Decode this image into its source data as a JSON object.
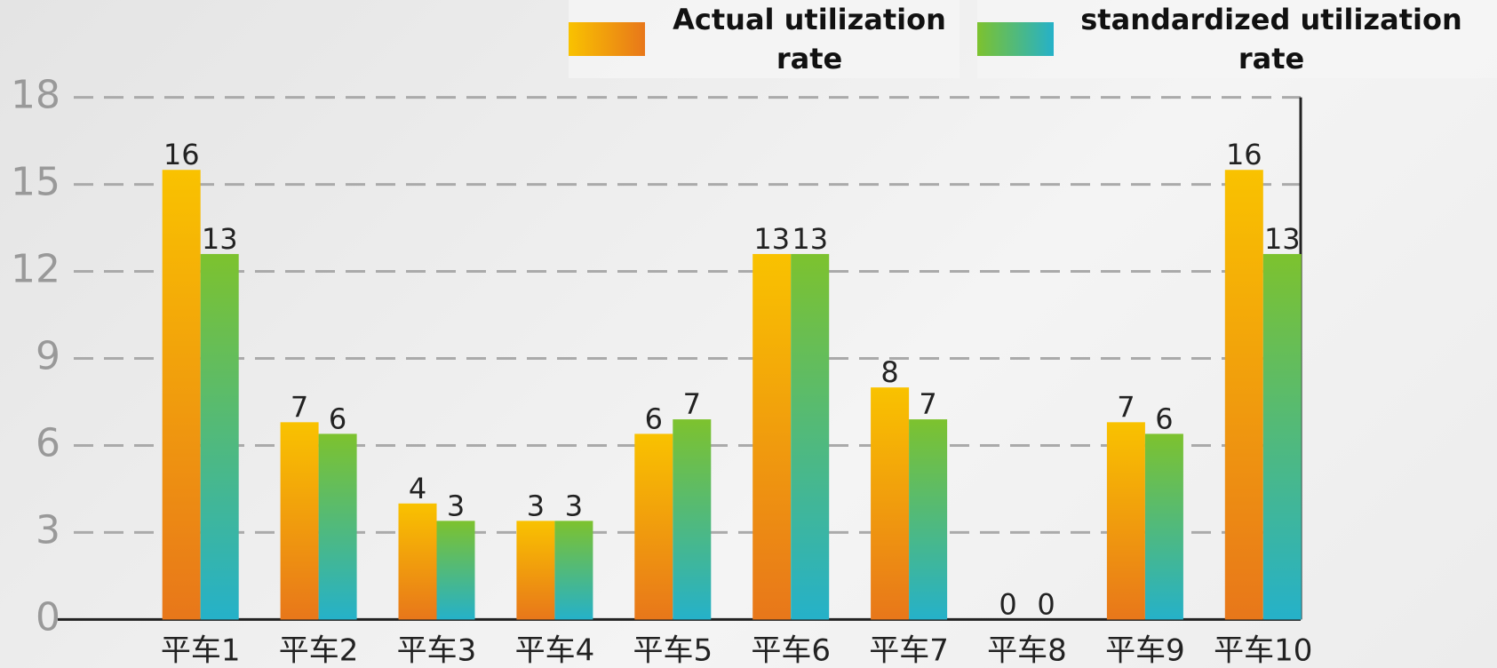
{
  "chart_data": {
    "type": "bar",
    "categories": [
      "平车1",
      "平车2",
      "平车3",
      "平车4",
      "平车5",
      "平车6",
      "平车7",
      "平车8",
      "平车9",
      "平车10"
    ],
    "series": [
      {
        "name": "Actual utilization rate",
        "color": "#f0a010",
        "gradient": [
          "#f9c200",
          "#e8771a"
        ],
        "values": [
          15.5,
          6.8,
          4.0,
          3.4,
          6.4,
          12.6,
          8.0,
          0,
          6.8,
          15.5
        ],
        "value_labels": [
          "16",
          "7",
          "4",
          "3",
          "6",
          "13",
          "8",
          "0",
          "7",
          "16"
        ]
      },
      {
        "name": "standardized utilization rate",
        "color": "#52b87a",
        "gradient": [
          "#7dc22e",
          "#25b1c9"
        ],
        "values": [
          12.6,
          6.4,
          3.4,
          3.4,
          6.9,
          12.6,
          6.9,
          0,
          6.4,
          12.6
        ],
        "value_labels": [
          "13",
          "6",
          "3",
          "3",
          "7",
          "13",
          "7",
          "0",
          "6",
          "13"
        ]
      }
    ],
    "ylim": [
      0,
      18
    ],
    "yticks": [
      0,
      3,
      6,
      9,
      12,
      15,
      18
    ],
    "grid": true
  }
}
